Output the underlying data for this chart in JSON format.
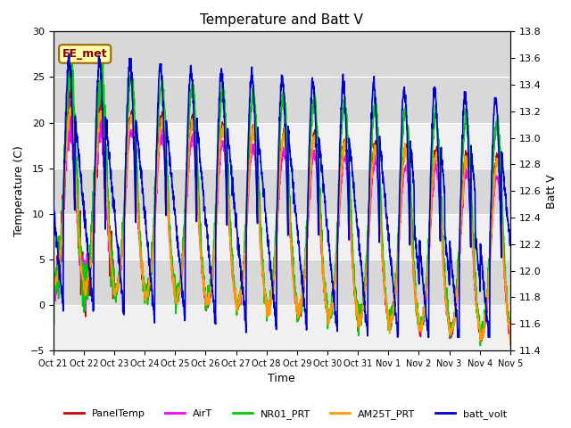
{
  "title": "Temperature and Batt V",
  "xlabel": "Time",
  "ylabel_left": "Temperature (C)",
  "ylabel_right": "Batt V",
  "annotation": "EE_met",
  "ylim_left": [
    -5,
    30
  ],
  "ylim_right": [
    11.4,
    13.8
  ],
  "background_color": "#ffffff",
  "plot_bg_color": "#f0f0f0",
  "band_colors": [
    "#e0e0e0",
    "#f0f0f0"
  ],
  "x_tick_labels": [
    "Oct 21",
    "Oct 22",
    "Oct 23",
    "Oct 24",
    "Oct 25",
    "Oct 26",
    "Oct 27",
    "Oct 28",
    "Oct 29",
    "Oct 30",
    "Oct 31",
    "Nov 1",
    "Nov 2",
    "Nov 3",
    "Nov 4",
    "Nov 5"
  ],
  "series": {
    "PanelTemp": {
      "color": "#cc0000",
      "lw": 1.0
    },
    "AirT": {
      "color": "#ff00ff",
      "lw": 1.0
    },
    "NR01_PRT": {
      "color": "#00cc00",
      "lw": 1.2
    },
    "AM25T_PRT": {
      "color": "#ff9900",
      "lw": 1.2
    },
    "batt_volt": {
      "color": "#0000cc",
      "lw": 1.2
    }
  },
  "n_days": 15,
  "pts_per_day": 144
}
